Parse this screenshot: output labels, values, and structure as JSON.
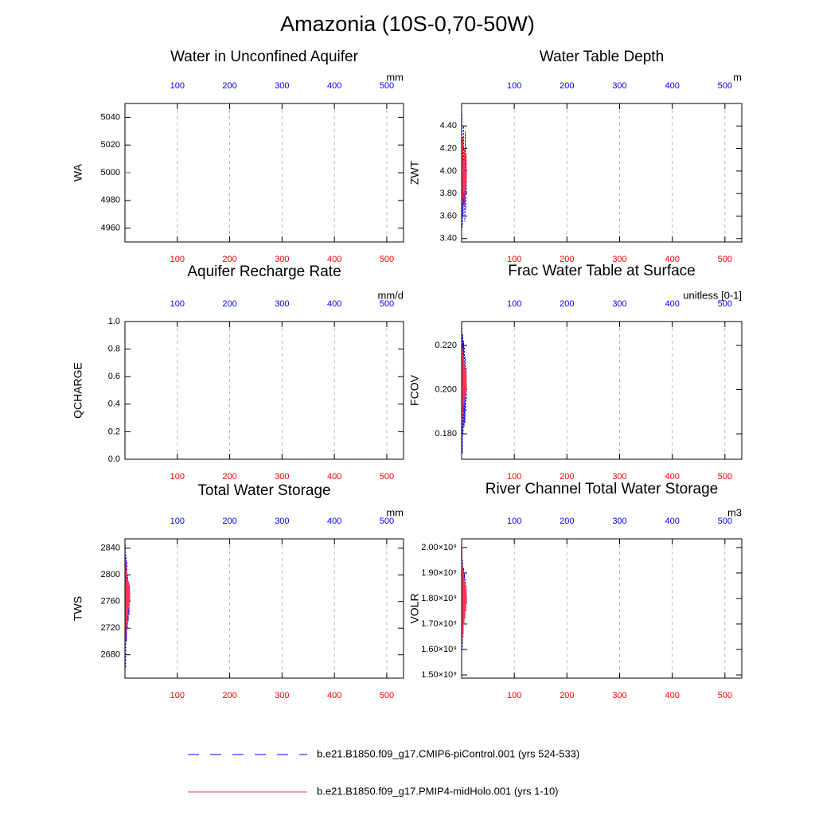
{
  "title": "Amazonia (10S-0,70-50W)",
  "chart_data": [
    {
      "type": "line",
      "title": "Water in Unconfined Aquifer",
      "units": "mm",
      "ylabel": "WA",
      "xlim": [
        0,
        532
      ],
      "xticks": [
        100,
        200,
        300,
        400,
        500
      ],
      "ylim": [
        4950,
        5050
      ],
      "yticks": [
        4960,
        4980,
        5000,
        5020,
        5040
      ],
      "x": [
        0.5,
        1.3,
        2.1,
        2.9,
        3.7,
        4.5,
        5.3,
        6.1,
        6.9,
        7.7,
        8.5,
        9.3
      ],
      "series": [
        {
          "name": "b.e21.B1850.f09_g17.CMIP6-piControl.001 (yrs 524-533)",
          "color": "#0000ff",
          "dash": true,
          "values": [
            5000,
            5000,
            5000,
            5000,
            5000,
            5000,
            5000,
            5000,
            5000,
            5000,
            5000,
            5000
          ]
        },
        {
          "name": "b.e21.B1850.f09_g17.PMIP4-midHolo.001 (yrs 1-10)",
          "color": "#ff3355",
          "dash": false,
          "values": [
            5000,
            5000,
            5000,
            5000,
            5000,
            5000,
            5000,
            5000,
            5000,
            5000,
            5000,
            5000
          ]
        }
      ]
    },
    {
      "type": "line",
      "title": "Water Table Depth",
      "units": "m",
      "ylabel": "ZWT",
      "xlim": [
        0,
        532
      ],
      "xticks": [
        100,
        200,
        300,
        400,
        500
      ],
      "ylim": [
        3.37,
        4.6
      ],
      "yticks": [
        {
          "value": 3.4,
          "label": "3.40"
        },
        {
          "value": 3.6,
          "label": "3.60"
        },
        {
          "value": 3.8,
          "label": "3.80"
        },
        {
          "value": 4,
          "label": "4.00"
        },
        {
          "value": 4.2,
          "label": "4.20"
        },
        {
          "value": 4.4,
          "label": "4.40"
        }
      ],
      "x": [
        0.5,
        1.3,
        2.1,
        2.9,
        3.7,
        4.5,
        5.3,
        6.1,
        6.9,
        7.7,
        8.5,
        9.3
      ],
      "series": [
        {
          "name": "b.e21.B1850.f09_g17.CMIP6-piControl.001 (yrs 524-533)",
          "color": "#0000ff",
          "dash": true,
          "values": [
            4.5,
            3.5,
            4.3,
            3.6,
            4.4,
            3.7,
            4.2,
            3.55,
            4.35,
            3.65,
            4.1,
            3.8
          ]
        },
        {
          "name": "b.e21.B1850.f09_g17.PMIP4-midHolo.001 (yrs 1-10)",
          "color": "#ff3355",
          "dash": false,
          "values": [
            4.25,
            3.7,
            4.3,
            3.75,
            4.1,
            3.8,
            4.2,
            3.7,
            4.0,
            3.85,
            4.15,
            3.9
          ]
        }
      ]
    },
    {
      "type": "line",
      "title": "Aquifer Recharge Rate",
      "units": "mm/d",
      "ylabel": "QCHARGE",
      "xlim": [
        0,
        532
      ],
      "xticks": [
        100,
        200,
        300,
        400,
        500
      ],
      "ylim": [
        0,
        1
      ],
      "yticks": [
        {
          "value": 0,
          "label": "0.0"
        },
        {
          "value": 0.2,
          "label": "0.2"
        },
        {
          "value": 0.4,
          "label": "0.4"
        },
        {
          "value": 0.6,
          "label": "0.6"
        },
        {
          "value": 0.8,
          "label": "0.8"
        },
        {
          "value": 1,
          "label": "1.0"
        }
      ],
      "series": []
    },
    {
      "type": "line",
      "title": "Frac Water Table at Surface",
      "units": "unitless [0-1]",
      "ylabel": "FCOV",
      "xlim": [
        0,
        532
      ],
      "xticks": [
        100,
        200,
        300,
        400,
        500
      ],
      "ylim": [
        0.1685,
        0.2308
      ],
      "yticks": [
        {
          "value": 0.18,
          "label": "0.180"
        },
        {
          "value": 0.2,
          "label": "0.200"
        },
        {
          "value": 0.22,
          "label": "0.220"
        }
      ],
      "x": [
        0.5,
        1.3,
        2.1,
        2.9,
        3.7,
        4.5,
        5.3,
        6.1,
        6.9,
        7.7,
        8.5,
        9.3
      ],
      "series": [
        {
          "name": "b.e21.B1850.f09_g17.CMIP6-piControl.001 (yrs 524-533)",
          "color": "#0000ff",
          "dash": true,
          "values": [
            0.228,
            0.171,
            0.225,
            0.18,
            0.222,
            0.183,
            0.22,
            0.185,
            0.215,
            0.19,
            0.21,
            0.195
          ]
        },
        {
          "name": "b.e21.B1850.f09_g17.PMIP4-midHolo.001 (yrs 1-10)",
          "color": "#ff3355",
          "dash": false,
          "values": [
            0.221,
            0.185,
            0.218,
            0.19,
            0.215,
            0.193,
            0.212,
            0.196,
            0.21,
            0.198,
            0.208,
            0.2
          ]
        }
      ]
    },
    {
      "type": "line",
      "title": "Total Water Storage",
      "units": "mm",
      "ylabel": "TWS",
      "xlim": [
        0,
        532
      ],
      "xticks": [
        100,
        200,
        300,
        400,
        500
      ],
      "ylim": [
        2645,
        2854
      ],
      "yticks": [
        2680,
        2720,
        2760,
        2800,
        2840
      ],
      "x": [
        0.5,
        1.3,
        2.1,
        2.9,
        3.7,
        4.5,
        5.3,
        6.1,
        6.9,
        7.7,
        8.5,
        9.3
      ],
      "series": [
        {
          "name": "b.e21.B1850.f09_g17.CMIP6-piControl.001 (yrs 524-533)",
          "color": "#0000ff",
          "dash": true,
          "values": [
            2845,
            2660,
            2830,
            2700,
            2820,
            2720,
            2800,
            2730,
            2790,
            2740,
            2785,
            2760
          ]
        },
        {
          "name": "b.e21.B1850.f09_g17.PMIP4-midHolo.001 (yrs 1-10)",
          "color": "#ff3355",
          "dash": false,
          "values": [
            2825,
            2700,
            2815,
            2720,
            2805,
            2730,
            2795,
            2740,
            2790,
            2750,
            2780,
            2765
          ]
        }
      ]
    },
    {
      "type": "line",
      "title": "River Channel Total Water Storage",
      "units": "m3",
      "ylabel": "VOLR",
      "xlim": [
        0,
        532
      ],
      "xticks": [
        100,
        200,
        300,
        400,
        500
      ],
      "ylim": [
        1487500000,
        2034000000
      ],
      "yticks": [
        {
          "value": 1500000000,
          "label": "1.50×10⁹"
        },
        {
          "value": 1600000000,
          "label": "1.60×10⁹"
        },
        {
          "value": 1700000000,
          "label": "1.70×10⁹"
        },
        {
          "value": 1800000000,
          "label": "1.80×10⁹"
        },
        {
          "value": 1900000000,
          "label": "1.90×10⁹"
        },
        {
          "value": 2000000000,
          "label": "2.00×10⁹"
        }
      ],
      "x": [
        0.5,
        1.3,
        2.1,
        2.9,
        3.7,
        4.5,
        5.3,
        6.1,
        6.9,
        7.7,
        8.5,
        9.3
      ],
      "series": [
        {
          "name": "b.e21.B1850.f09_g17.CMIP6-piControl.001 (yrs 524-533)",
          "color": "#0000ff",
          "dash": true,
          "values": [
            1990000000,
            1600000000,
            1950000000,
            1650000000,
            1920000000,
            1700000000,
            1900000000,
            1720000000,
            1880000000,
            1750000000,
            1850000000,
            1780000000
          ]
        },
        {
          "name": "b.e21.B1850.f09_g17.PMIP4-midHolo.001 (yrs 1-10)",
          "color": "#ff3355",
          "dash": false,
          "values": [
            2000000000,
            1630000000,
            1930000000,
            1660000000,
            1900000000,
            1700000000,
            1880000000,
            1720000000,
            1860000000,
            1750000000,
            1840000000,
            1780000000
          ]
        }
      ]
    }
  ]
}
